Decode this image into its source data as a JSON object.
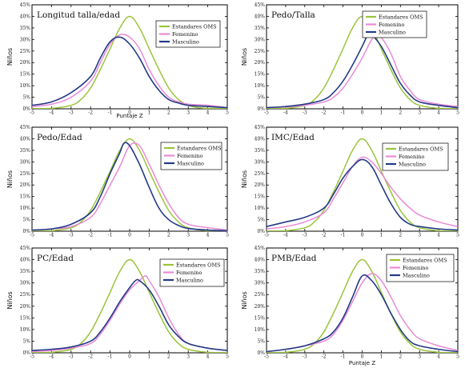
{
  "colors": {
    "oms": "#9bc43b",
    "femenino": "#e98ad6",
    "masculino": "#233a86"
  },
  "chart_data": [
    {
      "type": "line",
      "title": "Longitud talla/edad",
      "xlabel": "Puntaje Z",
      "ylabel": "Niños",
      "xlim": [
        -5,
        5
      ],
      "ylim": [
        0,
        45
      ],
      "xticks": [
        "-5",
        "-4",
        "-3",
        "-2",
        "-1",
        "0",
        "1",
        "2",
        "3",
        "4",
        "5"
      ],
      "yticks": [
        "0%",
        "5%",
        "10%",
        "15%",
        "20%",
        "25%",
        "30%",
        "35%",
        "40%",
        "45%"
      ],
      "legend_position": "top-right",
      "series": [
        {
          "name": "Estandares OMS",
          "x": [
            -5,
            -4,
            -3,
            -2.5,
            -2,
            -1.5,
            -1,
            -0.5,
            0,
            0.5,
            1,
            1.5,
            2,
            2.5,
            3,
            3.5,
            4,
            5
          ],
          "y": [
            0.1,
            0.2,
            1.5,
            4,
            9,
            17,
            26,
            35,
            40,
            35,
            26,
            17,
            9,
            4,
            1.5,
            0.5,
            0.2,
            0.1
          ]
        },
        {
          "name": "Femenino",
          "x": [
            -5,
            -4,
            -3,
            -2,
            -1.5,
            -1,
            -0.5,
            0,
            0.5,
            1,
            1.5,
            2,
            2.5,
            3,
            4,
            5
          ],
          "y": [
            1,
            2,
            5,
            12,
            20,
            28,
            32,
            31,
            26,
            17,
            10,
            5,
            3,
            2,
            1.5,
            0.5
          ]
        },
        {
          "name": "Masculino",
          "x": [
            -5,
            -4,
            -3,
            -2,
            -1.5,
            -1,
            -0.5,
            0,
            0.5,
            1,
            1.5,
            2,
            2.5,
            3,
            4,
            5
          ],
          "y": [
            1.5,
            3,
            7,
            14,
            22,
            29,
            31,
            28,
            22,
            14,
            8,
            4,
            2.5,
            1.5,
            1,
            0.5
          ]
        }
      ]
    },
    {
      "type": "line",
      "title": "Pedo/Talla",
      "xlabel": "",
      "ylabel": "Niños",
      "xlim": [
        -5,
        5
      ],
      "ylim": [
        0,
        45
      ],
      "xticks": [
        "-5",
        "-4",
        "-3",
        "-2",
        "-1",
        "0",
        "1",
        "2",
        "3",
        "4",
        "5"
      ],
      "yticks": [
        "0%",
        "5%",
        "10%",
        "15%",
        "20%",
        "25%",
        "30%",
        "35%",
        "40%",
        "45%"
      ],
      "legend_position": "top-right",
      "series": [
        {
          "name": "Estandares OMS",
          "x": [
            -5,
            -4,
            -3,
            -2.5,
            -2,
            -1.5,
            -1,
            -0.5,
            0,
            0.5,
            1,
            1.5,
            2,
            2.5,
            3,
            4,
            5
          ],
          "y": [
            0.1,
            0.2,
            1.5,
            4,
            9,
            17,
            26,
            35,
            40,
            35,
            26,
            17,
            9,
            4,
            1.5,
            0.2,
            0.1
          ]
        },
        {
          "name": "Femenino",
          "x": [
            -5,
            -4,
            -3,
            -2,
            -1.5,
            -1,
            -0.5,
            0,
            0.5,
            0.8,
            1,
            1.5,
            2,
            2.5,
            3,
            4,
            5
          ],
          "y": [
            0.5,
            0.8,
            1.5,
            3,
            5,
            9,
            15,
            22,
            30,
            32,
            31,
            24,
            14,
            8,
            4,
            2,
            1
          ]
        },
        {
          "name": "Masculino",
          "x": [
            -5,
            -4,
            -3,
            -2,
            -1.5,
            -1,
            -0.5,
            0,
            0.3,
            0.5,
            1,
            1.5,
            2,
            2.5,
            3,
            4,
            5
          ],
          "y": [
            0.5,
            1,
            2,
            4,
            7,
            12,
            19,
            27,
            32,
            32,
            27,
            19,
            11,
            6,
            3,
            1.5,
            0.5
          ]
        }
      ]
    },
    {
      "type": "line",
      "title": "Pedo/Edad",
      "xlabel": "",
      "ylabel": "Niños",
      "xlim": [
        -5,
        5
      ],
      "ylim": [
        0,
        45
      ],
      "xticks": [
        "-5",
        "-4",
        "-3",
        "-2",
        "-1",
        "0",
        "1",
        "2",
        "3",
        "4",
        "5"
      ],
      "yticks": [
        "0%",
        "5%",
        "10%",
        "15%",
        "20%",
        "25%",
        "30%",
        "35%",
        "40%",
        "45%"
      ],
      "legend_position": "top-right",
      "series": [
        {
          "name": "Estandares OMS",
          "x": [
            -5,
            -4,
            -3,
            -2.5,
            -2,
            -1.5,
            -1,
            -0.5,
            0,
            0.5,
            1,
            1.5,
            2,
            2.5,
            3,
            4,
            5
          ],
          "y": [
            0.1,
            0.2,
            1.5,
            4,
            9,
            17,
            26,
            35,
            40,
            35,
            26,
            17,
            9,
            4,
            1.5,
            0.2,
            0.1
          ]
        },
        {
          "name": "Femenino",
          "x": [
            -5,
            -4,
            -3,
            -2,
            -1.5,
            -1,
            -0.5,
            0,
            0.5,
            1,
            1.5,
            2,
            2.5,
            3,
            4,
            5
          ],
          "y": [
            0.5,
            1,
            2,
            6,
            12,
            20,
            28,
            37,
            37,
            29,
            20,
            12,
            6,
            3,
            1.5,
            0.5
          ]
        },
        {
          "name": "Masculino",
          "x": [
            -5,
            -4,
            -3,
            -2,
            -1.5,
            -1,
            -0.5,
            -0.3,
            0,
            0.5,
            1,
            1.5,
            2,
            2.5,
            3,
            4,
            5
          ],
          "y": [
            0.5,
            1,
            3,
            8,
            15,
            25,
            34,
            38,
            37,
            29,
            19,
            10,
            5,
            2.5,
            1.2,
            0.5,
            0.2
          ]
        }
      ]
    },
    {
      "type": "line",
      "title": "IMC/Edad",
      "xlabel": "",
      "ylabel": "Niños",
      "xlim": [
        -5,
        5
      ],
      "ylim": [
        0,
        45
      ],
      "xticks": [
        "-5",
        "-4",
        "-3",
        "-2",
        "-1",
        "0",
        "1",
        "2",
        "3",
        "4",
        "5"
      ],
      "yticks": [
        "0%",
        "5%",
        "10%",
        "15%",
        "20%",
        "25%",
        "30%",
        "35%",
        "40%",
        "45%"
      ],
      "legend_position": "top-right",
      "series": [
        {
          "name": "Estandares OMS",
          "x": [
            -5,
            -4,
            -3,
            -2.5,
            -2,
            -1.5,
            -1,
            -0.5,
            0,
            0.5,
            1,
            1.5,
            2,
            2.5,
            3,
            4,
            5
          ],
          "y": [
            0.1,
            0.2,
            1.5,
            4,
            9,
            17,
            26,
            35,
            40,
            35,
            26,
            17,
            9,
            4,
            1.5,
            0.2,
            0.1
          ]
        },
        {
          "name": "Femenino",
          "x": [
            -5,
            -4,
            -3,
            -2,
            -1.5,
            -1,
            -0.5,
            0,
            0.5,
            1,
            1.5,
            2,
            2.5,
            3,
            4,
            5
          ],
          "y": [
            1,
            2,
            4,
            8,
            14,
            21,
            28,
            32,
            30,
            25,
            19,
            14,
            10,
            7,
            4,
            2
          ]
        },
        {
          "name": "Masculino",
          "x": [
            -5,
            -4,
            -3,
            -2,
            -1.5,
            -1,
            -0.5,
            0,
            0.5,
            1,
            1.5,
            2,
            2.5,
            3,
            4,
            5
          ],
          "y": [
            2,
            4,
            6,
            10,
            16,
            23,
            28,
            31,
            28,
            20,
            12,
            6,
            3,
            2,
            1,
            0.5
          ]
        }
      ]
    },
    {
      "type": "line",
      "title": "PC/Edad",
      "xlabel": "",
      "ylabel": "Niños",
      "xlim": [
        -5,
        5
      ],
      "ylim": [
        0,
        45
      ],
      "xticks": [
        "-5",
        "-4",
        "-3",
        "-2",
        "-1",
        "0",
        "1",
        "2",
        "3",
        "4",
        "5"
      ],
      "yticks": [
        "0%",
        "5%",
        "10%",
        "15%",
        "20%",
        "25%",
        "30%",
        "35%",
        "40%",
        "45%"
      ],
      "legend_position": "top-right",
      "series": [
        {
          "name": "Estandares OMS",
          "x": [
            -5,
            -4,
            -3,
            -2.5,
            -2,
            -1.5,
            -1,
            -0.5,
            0,
            0.5,
            1,
            1.5,
            2,
            2.5,
            3,
            4,
            5
          ],
          "y": [
            0.1,
            0.2,
            1.5,
            4,
            9,
            17,
            26,
            35,
            40,
            35,
            26,
            17,
            9,
            4,
            1.5,
            0.2,
            0.1
          ]
        },
        {
          "name": "Femenino",
          "x": [
            -5,
            -4,
            -3,
            -2,
            -1.5,
            -1,
            -0.5,
            0,
            0.5,
            0.8,
            1,
            1.5,
            2,
            2.5,
            3,
            4,
            5
          ],
          "y": [
            0.5,
            1,
            2,
            4,
            8,
            14,
            21,
            27,
            31,
            33,
            31,
            24,
            15,
            8,
            4,
            2,
            1
          ]
        },
        {
          "name": "Masculino",
          "x": [
            -5,
            -4,
            -3,
            -2,
            -1.5,
            -1,
            -0.5,
            0,
            0.3,
            0.5,
            1,
            1.5,
            2,
            2.5,
            3,
            4,
            5
          ],
          "y": [
            1,
            1.5,
            2.5,
            5,
            9,
            15,
            22,
            28,
            31,
            31,
            27,
            20,
            12,
            7,
            4,
            2,
            1
          ]
        }
      ]
    },
    {
      "type": "line",
      "title": "PMB/Edad",
      "xlabel": "Puntaje Z",
      "ylabel": "Niños",
      "xlim": [
        -5,
        5
      ],
      "ylim": [
        0,
        45
      ],
      "xticks": [
        "-5",
        "-4",
        "-3",
        "-2",
        "-1",
        "0",
        "1",
        "2",
        "3",
        "4",
        "5"
      ],
      "yticks": [
        "0%",
        "5%",
        "10%",
        "15%",
        "20%",
        "25%",
        "30%",
        "35%",
        "40%",
        "45%"
      ],
      "legend_position": "top-right",
      "series": [
        {
          "name": "Estandares OMS",
          "x": [
            -5,
            -4,
            -3,
            -2.5,
            -2,
            -1.5,
            -1,
            -0.5,
            0,
            0.5,
            1,
            1.5,
            2,
            2.5,
            3,
            4,
            5
          ],
          "y": [
            0.1,
            0.2,
            1.5,
            4,
            9,
            17,
            26,
            35,
            40,
            35,
            26,
            17,
            9,
            4,
            1.5,
            0.2,
            0.1
          ]
        },
        {
          "name": "Femenino",
          "x": [
            -5,
            -4,
            -3,
            -2,
            -1.5,
            -1,
            -0.5,
            0,
            0.5,
            1,
            1.5,
            2,
            2.5,
            3,
            4,
            5
          ],
          "y": [
            0.5,
            1.5,
            3,
            5,
            8,
            14,
            22,
            30,
            34,
            31,
            24,
            16,
            10,
            6,
            3,
            1
          ]
        },
        {
          "name": "Masculino",
          "x": [
            -5,
            -4,
            -3,
            -2,
            -1.5,
            -1,
            -0.5,
            0,
            0.5,
            1,
            1.5,
            2,
            2.5,
            3,
            4,
            5
          ],
          "y": [
            0.5,
            1.5,
            3,
            6,
            9,
            15,
            24,
            33,
            31,
            25,
            17,
            10,
            5,
            3,
            1.5,
            0.5
          ]
        }
      ]
    }
  ]
}
